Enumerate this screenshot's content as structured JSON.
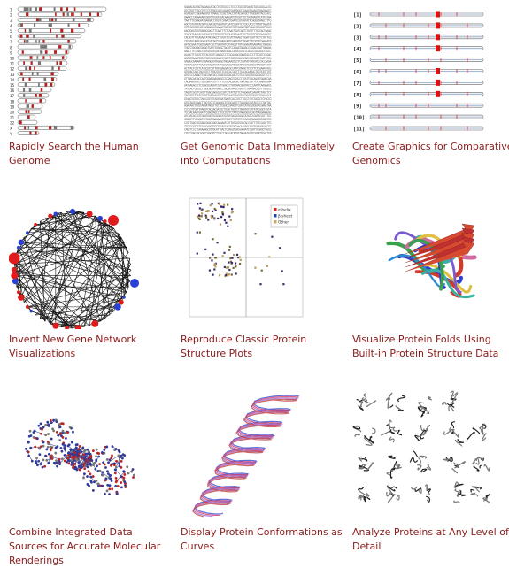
{
  "colors": {
    "caption": "#8b1a1a"
  },
  "tiles": [
    {
      "id": "search-genome",
      "line1": "Rapidly Search the Human",
      "line2": "Genome",
      "line3": ""
    },
    {
      "id": "genomic-data",
      "line1": "Get Genomic Data Immediately",
      "line2": "into Computations",
      "line3": ""
    },
    {
      "id": "comparative-genomics",
      "line1": "Create Graphics for Comparative",
      "line2": "Genomics",
      "line3": ""
    },
    {
      "id": "gene-network",
      "line1": "Invent New Gene Network",
      "line2": "Visualizations",
      "line3": ""
    },
    {
      "id": "protein-plots",
      "line1": "Reproduce Classic Protein",
      "line2": "Structure Plots",
      "line3": ""
    },
    {
      "id": "protein-folds",
      "line1": "Visualize Protein Folds Using",
      "line2": "Built-in Protein Structure Data",
      "line3": ""
    },
    {
      "id": "molecular-renderings",
      "line1": "Combine Integrated Data",
      "line2": "Sources for Accurate Molecular",
      "line3": "Renderings"
    },
    {
      "id": "protein-conformations",
      "line1": "Display Protein Conformations as",
      "line2": "Curves",
      "line3": ""
    },
    {
      "id": "analyze-proteins",
      "line1": "Analyze Proteins at Any Level of",
      "line2": "Detail",
      "line3": ""
    }
  ],
  "thumbs": {
    "chromosome_labels": [
      "1",
      "2",
      "3",
      "4",
      "5",
      "6",
      "7",
      "8",
      "9",
      "10",
      "11",
      "12",
      "13",
      "14",
      "15",
      "16",
      "17",
      "18",
      "19",
      "20",
      "21",
      "22",
      "X",
      "Y"
    ],
    "track_labels": [
      "[1]",
      "[2]",
      "[3]",
      "[4]",
      "[5]",
      "[6]",
      "[7]",
      "[8]",
      "[9]",
      "[10]",
      "[11]"
    ],
    "legend": [
      "α-helix",
      "β-sheet",
      "Other"
    ]
  }
}
